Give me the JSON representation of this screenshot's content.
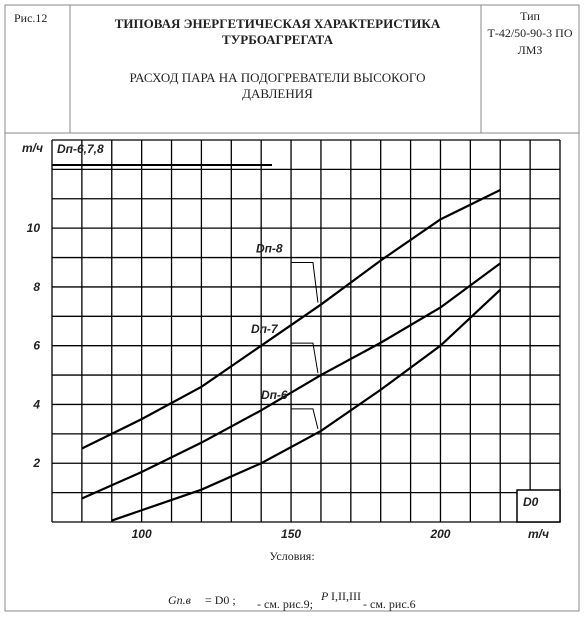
{
  "header": {
    "figure": "Рис.12",
    "title": "ТИПОВАЯ ЭНЕРГЕТИЧЕСКАЯ ХАРАКТЕРИСТИКА ТУРБОАГРЕГАТА",
    "subtitle": "РАСХОД ПАРА НА ПОДОГРЕВАТЕЛИ ВЫСОКОГО ДАВЛЕНИЯ",
    "type_label": "Тип",
    "type_value": "Т-42/50-90-3 ПО ЛМЗ"
  },
  "chart_data": {
    "type": "line",
    "y_unit": "т/ч",
    "y_corner_label": "Dп-6,7,8",
    "x_corner_label": "D0",
    "x_unit": "т/ч",
    "xlim": [
      70,
      240
    ],
    "ylim": [
      0,
      13
    ],
    "xticks": [
      100,
      150,
      200
    ],
    "yticks": [
      2,
      4,
      6,
      8,
      10
    ],
    "xgrid": [
      70,
      80,
      90,
      100,
      110,
      120,
      130,
      140,
      150,
      160,
      170,
      180,
      190,
      200,
      210,
      220,
      230,
      240
    ],
    "ygrid": [
      0,
      1,
      2,
      3,
      4,
      5,
      6,
      7,
      8,
      9,
      10,
      11,
      12,
      13
    ],
    "color": "#000000",
    "series": [
      {
        "name": "Dп-8",
        "x": [
          80,
          100,
          120,
          140,
          160,
          180,
          200,
          220
        ],
        "values": [
          2.5,
          3.5,
          4.6,
          6.0,
          7.4,
          8.9,
          10.3,
          11.3
        ]
      },
      {
        "name": "Dп-7",
        "x": [
          80,
          100,
          120,
          140,
          160,
          180,
          200,
          220
        ],
        "values": [
          0.8,
          1.7,
          2.7,
          3.8,
          5.0,
          6.1,
          7.3,
          8.8
        ]
      },
      {
        "name": "Dп-6",
        "x": [
          90,
          100,
          120,
          140,
          160,
          180,
          200,
          220
        ],
        "values": [
          0.05,
          0.4,
          1.1,
          2.0,
          3.1,
          4.5,
          6.0,
          7.9
        ]
      }
    ]
  },
  "footer": {
    "conditions": "Условия:",
    "formula_g": "Gп.в",
    "formula_eq": "= D0 ;",
    "ref1": "- см. рис.9;",
    "formula_p": "P",
    "formula_p_sub": "I,II,III",
    "ref2": "- см. рис.6"
  }
}
